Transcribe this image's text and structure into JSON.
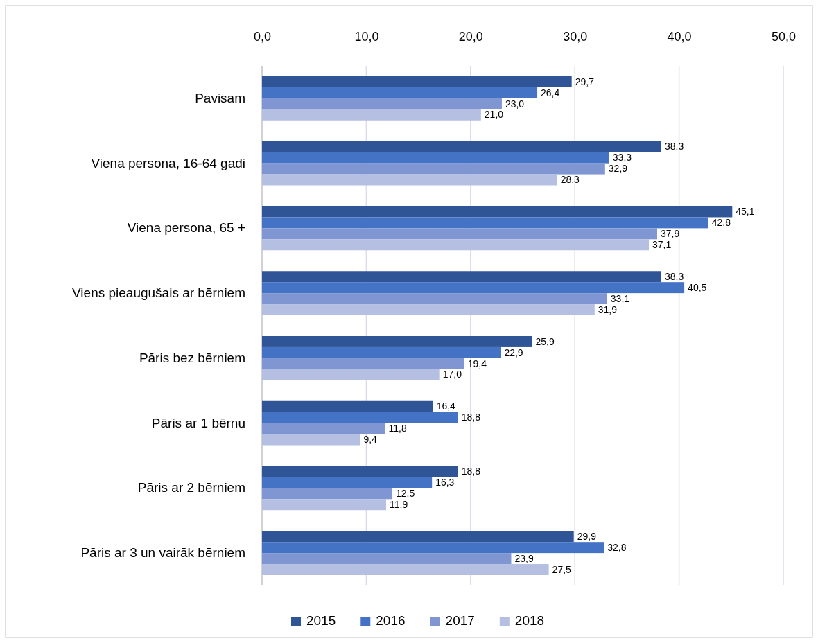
{
  "chart_data": {
    "type": "bar",
    "orientation": "horizontal",
    "categories": [
      "Pavisam",
      "Viena persona, 16-64 gadi",
      "Viena persona, 65 +",
      "Viens pieaugušais ar bērniem",
      "Pāris bez bērniem",
      "Pāris ar 1 bērnu",
      "Pāris ar 2 bērniem",
      "Pāris ar 3 un vairāk bērniem"
    ],
    "series": [
      {
        "name": "2015",
        "color": "#2f5597",
        "values": [
          29.7,
          38.3,
          45.1,
          38.3,
          25.9,
          16.4,
          18.8,
          29.9
        ],
        "value_labels": [
          "29,7",
          "38,3",
          "45,1",
          "38,3",
          "25,9",
          "16,4",
          "18,8",
          "29,9"
        ]
      },
      {
        "name": "2016",
        "color": "#4472c4",
        "values": [
          26.4,
          33.3,
          42.8,
          40.5,
          22.9,
          18.8,
          16.3,
          32.8
        ],
        "value_labels": [
          "26,4",
          "33,3",
          "42,8",
          "40,5",
          "22,9",
          "18,8",
          "16,3",
          "32,8"
        ]
      },
      {
        "name": "2017",
        "color": "#7f96d2",
        "values": [
          23.0,
          32.9,
          37.9,
          33.1,
          19.4,
          11.8,
          12.5,
          23.9
        ],
        "value_labels": [
          "23,0",
          "32,9",
          "37,9",
          "33,1",
          "19,4",
          "11,8",
          "12,5",
          "23,9"
        ]
      },
      {
        "name": "2018",
        "color": "#b4bfe2",
        "values": [
          21.0,
          28.3,
          37.1,
          31.9,
          17.0,
          9.4,
          11.9,
          27.5
        ],
        "value_labels": [
          "21,0",
          "28,3",
          "37,1",
          "31,9",
          "17,0",
          "9,4",
          "11,9",
          "27,5"
        ]
      }
    ],
    "xlim": [
      0,
      50
    ],
    "xticks": [
      {
        "value": 0,
        "label": "0,0"
      },
      {
        "value": 10,
        "label": "10,0"
      },
      {
        "value": 20,
        "label": "20,0"
      },
      {
        "value": 30,
        "label": "30,0"
      },
      {
        "value": 40,
        "label": "40,0"
      },
      {
        "value": 50,
        "label": "50,0"
      }
    ],
    "grid": "x",
    "legend": "bottom"
  }
}
